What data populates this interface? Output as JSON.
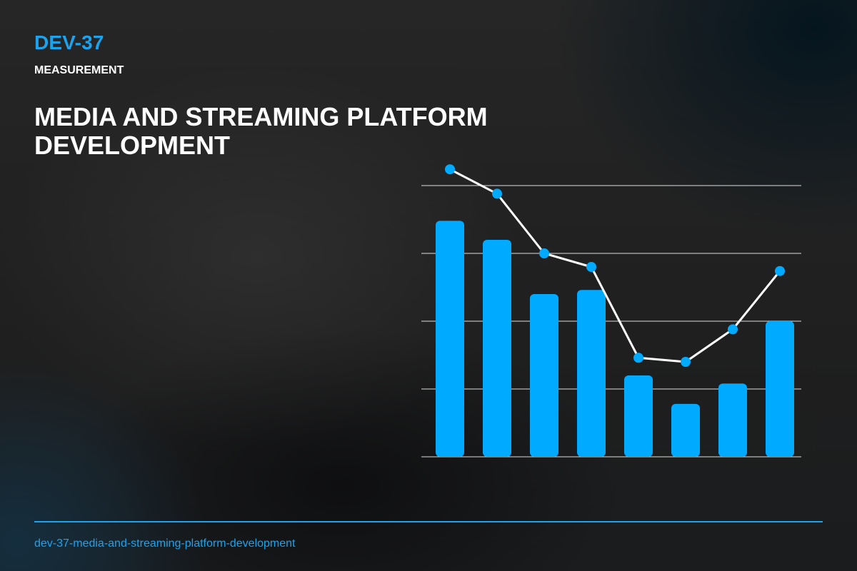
{
  "header": {
    "code": "DEV-37",
    "category": "MEASUREMENT",
    "title": "MEDIA AND STREAMING PLATFORM DEVELOPMENT"
  },
  "footer": {
    "slug": "dev-37-media-and-streaming-platform-development"
  },
  "colors": {
    "accent": "#1aa3ef",
    "bar": "#00aaff",
    "line": "#ffffff",
    "marker": "#00aaff",
    "gridline": "#ffffff"
  },
  "chart_data": {
    "type": "bar",
    "title": "",
    "xlabel": "",
    "ylabel": "",
    "ylim": [
      0,
      100
    ],
    "grid": true,
    "gridlines": [
      25,
      50,
      75,
      100
    ],
    "series": [
      {
        "type": "bar",
        "values": [
          87,
          80,
          60,
          61.5,
          30,
          19.5,
          27,
          50
        ]
      },
      {
        "type": "line",
        "values": [
          106,
          97,
          75,
          70,
          36.5,
          35,
          47,
          68.5
        ]
      }
    ]
  }
}
